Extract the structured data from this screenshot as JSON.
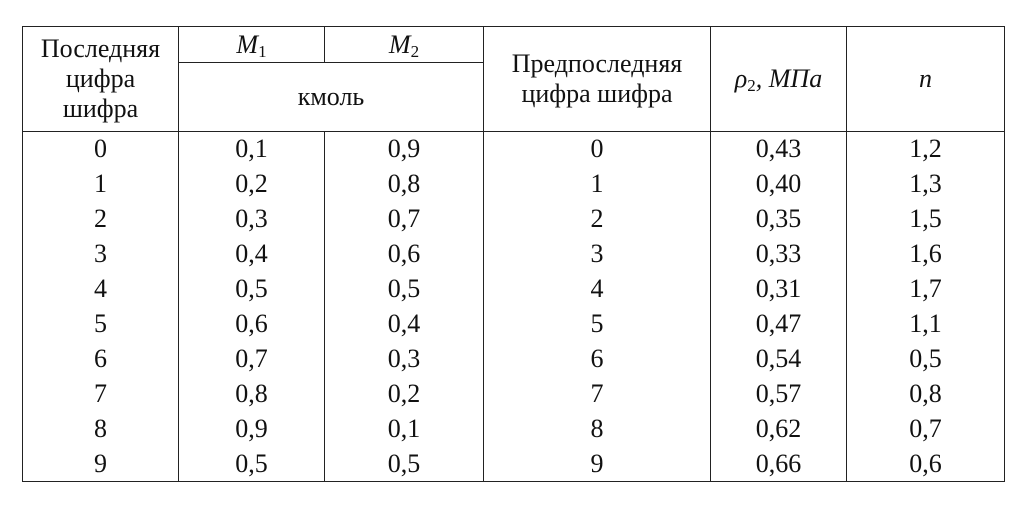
{
  "table": {
    "header": {
      "last_digit": [
        "Последняя",
        "цифра",
        "шифра"
      ],
      "m1": {
        "symbol": "M",
        "sub": "1"
      },
      "m2": {
        "symbol": "M",
        "sub": "2"
      },
      "unit": "кмоль",
      "prev_digit": [
        "Предпоследняя",
        "цифра шифра"
      ],
      "p2": {
        "symbol": "ρ",
        "sub": "2",
        "rest": ", МПа"
      },
      "n": "n"
    },
    "rows": [
      [
        "0",
        "0,1",
        "0,9",
        "0",
        "0,43",
        "1,2"
      ],
      [
        "1",
        "0,2",
        "0,8",
        "1",
        "0,40",
        "1,3"
      ],
      [
        "2",
        "0,3",
        "0,7",
        "2",
        "0,35",
        "1,5"
      ],
      [
        "3",
        "0,4",
        "0,6",
        "3",
        "0,33",
        "1,6"
      ],
      [
        "4",
        "0,5",
        "0,5",
        "4",
        "0,31",
        "1,7"
      ],
      [
        "5",
        "0,6",
        "0,4",
        "5",
        "0,47",
        "1,1"
      ],
      [
        "6",
        "0,7",
        "0,3",
        "6",
        "0,54",
        "0,5"
      ],
      [
        "7",
        "0,8",
        "0,2",
        "7",
        "0,57",
        "0,8"
      ],
      [
        "8",
        "0,9",
        "0,1",
        "8",
        "0,62",
        "0,7"
      ],
      [
        "9",
        "0,5",
        "0,5",
        "9",
        "0,66",
        "0,6"
      ]
    ]
  }
}
